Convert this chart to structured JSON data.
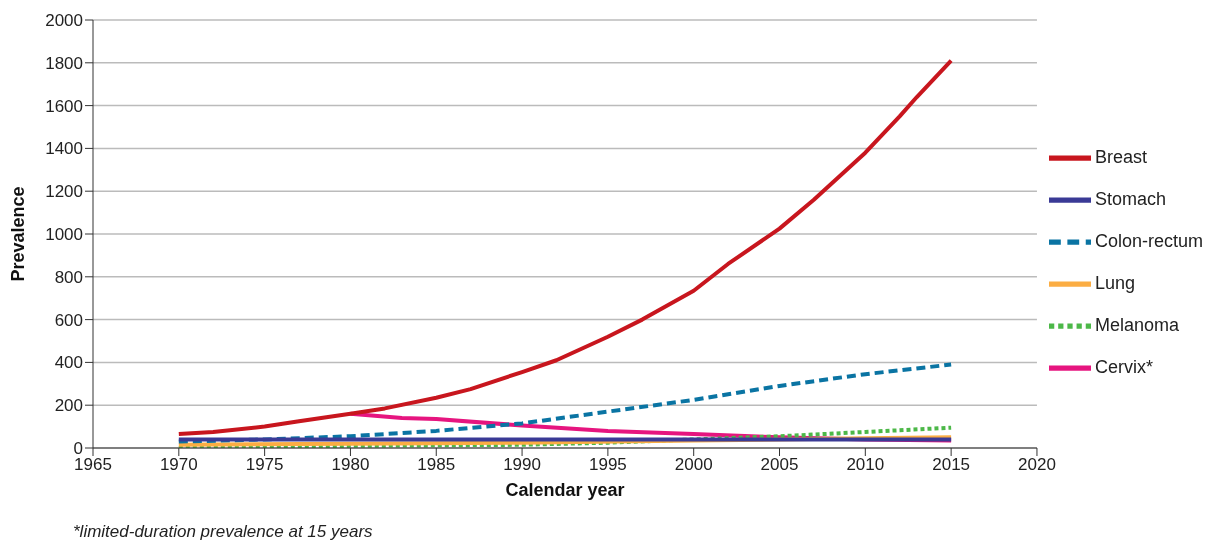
{
  "chart_data": {
    "type": "line",
    "xlabel": "Calendar year",
    "ylabel": "Prevalence",
    "xlim": [
      1965,
      2020
    ],
    "xticks": [
      1965,
      1970,
      1975,
      1980,
      1985,
      1990,
      1995,
      2000,
      2005,
      2010,
      2015,
      2020
    ],
    "ylim": [
      0,
      2000
    ],
    "yticks": [
      0,
      200,
      400,
      600,
      800,
      1000,
      1200,
      1400,
      1600,
      1800,
      2000
    ],
    "grid": "y",
    "legend": "right",
    "marker": "none",
    "annotations": [
      "*limited-duration prevalence at 15 years"
    ],
    "series": [
      {
        "name": "Breast",
        "color": "#c8161e",
        "line_style": "solid",
        "x": [
          1970,
          1972,
          1975,
          1977,
          1980,
          1982,
          1985,
          1987,
          1990,
          1992,
          1995,
          1997,
          2000,
          2002,
          2005,
          2007,
          2010,
          2012,
          2013,
          2015
        ],
        "values": [
          65,
          75,
          100,
          125,
          160,
          185,
          235,
          275,
          355,
          410,
          520,
          600,
          735,
          860,
          1025,
          1160,
          1380,
          1550,
          1640,
          1810
        ]
      },
      {
        "name": "Stomach",
        "color": "#3a3a96",
        "line_style": "solid",
        "x": [
          1970,
          1980,
          1990,
          2000,
          2010,
          2015
        ],
        "values": [
          40,
          40,
          40,
          40,
          40,
          40
        ]
      },
      {
        "name": "Colon-rectum",
        "color": "#0a74a3",
        "line_style": "dashed",
        "x": [
          1970,
          1975,
          1980,
          1985,
          1990,
          1995,
          2000,
          2005,
          2010,
          2015
        ],
        "values": [
          30,
          40,
          55,
          80,
          115,
          170,
          225,
          290,
          345,
          390
        ]
      },
      {
        "name": "Lung",
        "color": "#fbad43",
        "line_style": "solid",
        "x": [
          1970,
          1980,
          1990,
          2000,
          2010,
          2015
        ],
        "values": [
          15,
          20,
          25,
          35,
          45,
          50
        ]
      },
      {
        "name": "Melanoma",
        "color": "#4cb848",
        "line_style": "dotted",
        "x": [
          1970,
          1980,
          1990,
          1995,
          2000,
          2005,
          2010,
          2015
        ],
        "values": [
          0,
          10,
          15,
          25,
          40,
          55,
          75,
          95
        ]
      },
      {
        "name": "Cervix*",
        "color": "#e6157f",
        "line_style": "solid",
        "x": [
          1980,
          1983,
          1985,
          1990,
          1995,
          2000,
          2005,
          2010,
          2015
        ],
        "values": [
          160,
          140,
          135,
          105,
          80,
          65,
          50,
          40,
          35
        ]
      }
    ]
  }
}
